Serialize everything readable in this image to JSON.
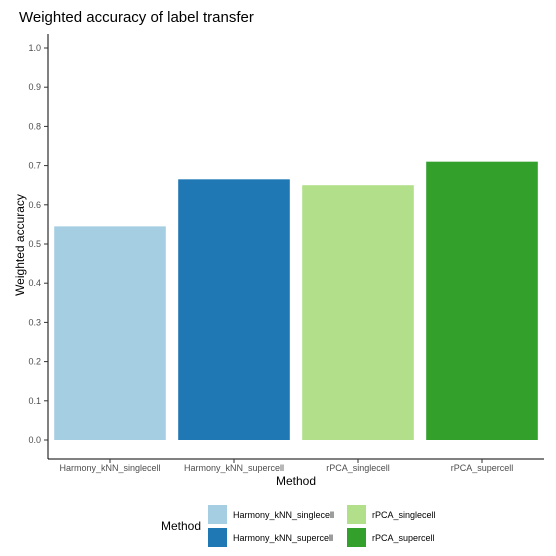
{
  "chart_data": {
    "type": "bar",
    "title": "Weighted accuracy of label transfer",
    "xlabel": "Method",
    "ylabel": "Weighted accuracy",
    "categories": [
      "Harmony_kNN_singlecell",
      "Harmony_kNN_supercell",
      "rPCA_singlecell",
      "rPCA_supercell"
    ],
    "values": [
      0.545,
      0.665,
      0.65,
      0.71
    ],
    "colors": [
      "#a6cee3",
      "#1f78b4",
      "#b2df8a",
      "#33a02c"
    ],
    "ylim": [
      0,
      1.0
    ],
    "yticks": [
      "0.0",
      "0.1",
      "0.2",
      "0.3",
      "0.4",
      "0.5",
      "0.6",
      "0.7",
      "0.8",
      "0.9",
      "1.0"
    ],
    "grid": false,
    "legend": {
      "title": "Method",
      "placement": "bottom",
      "entries": [
        "Harmony_kNN_singlecell",
        "Harmony_kNN_supercell",
        "rPCA_singlecell",
        "rPCA_supercell"
      ]
    }
  }
}
